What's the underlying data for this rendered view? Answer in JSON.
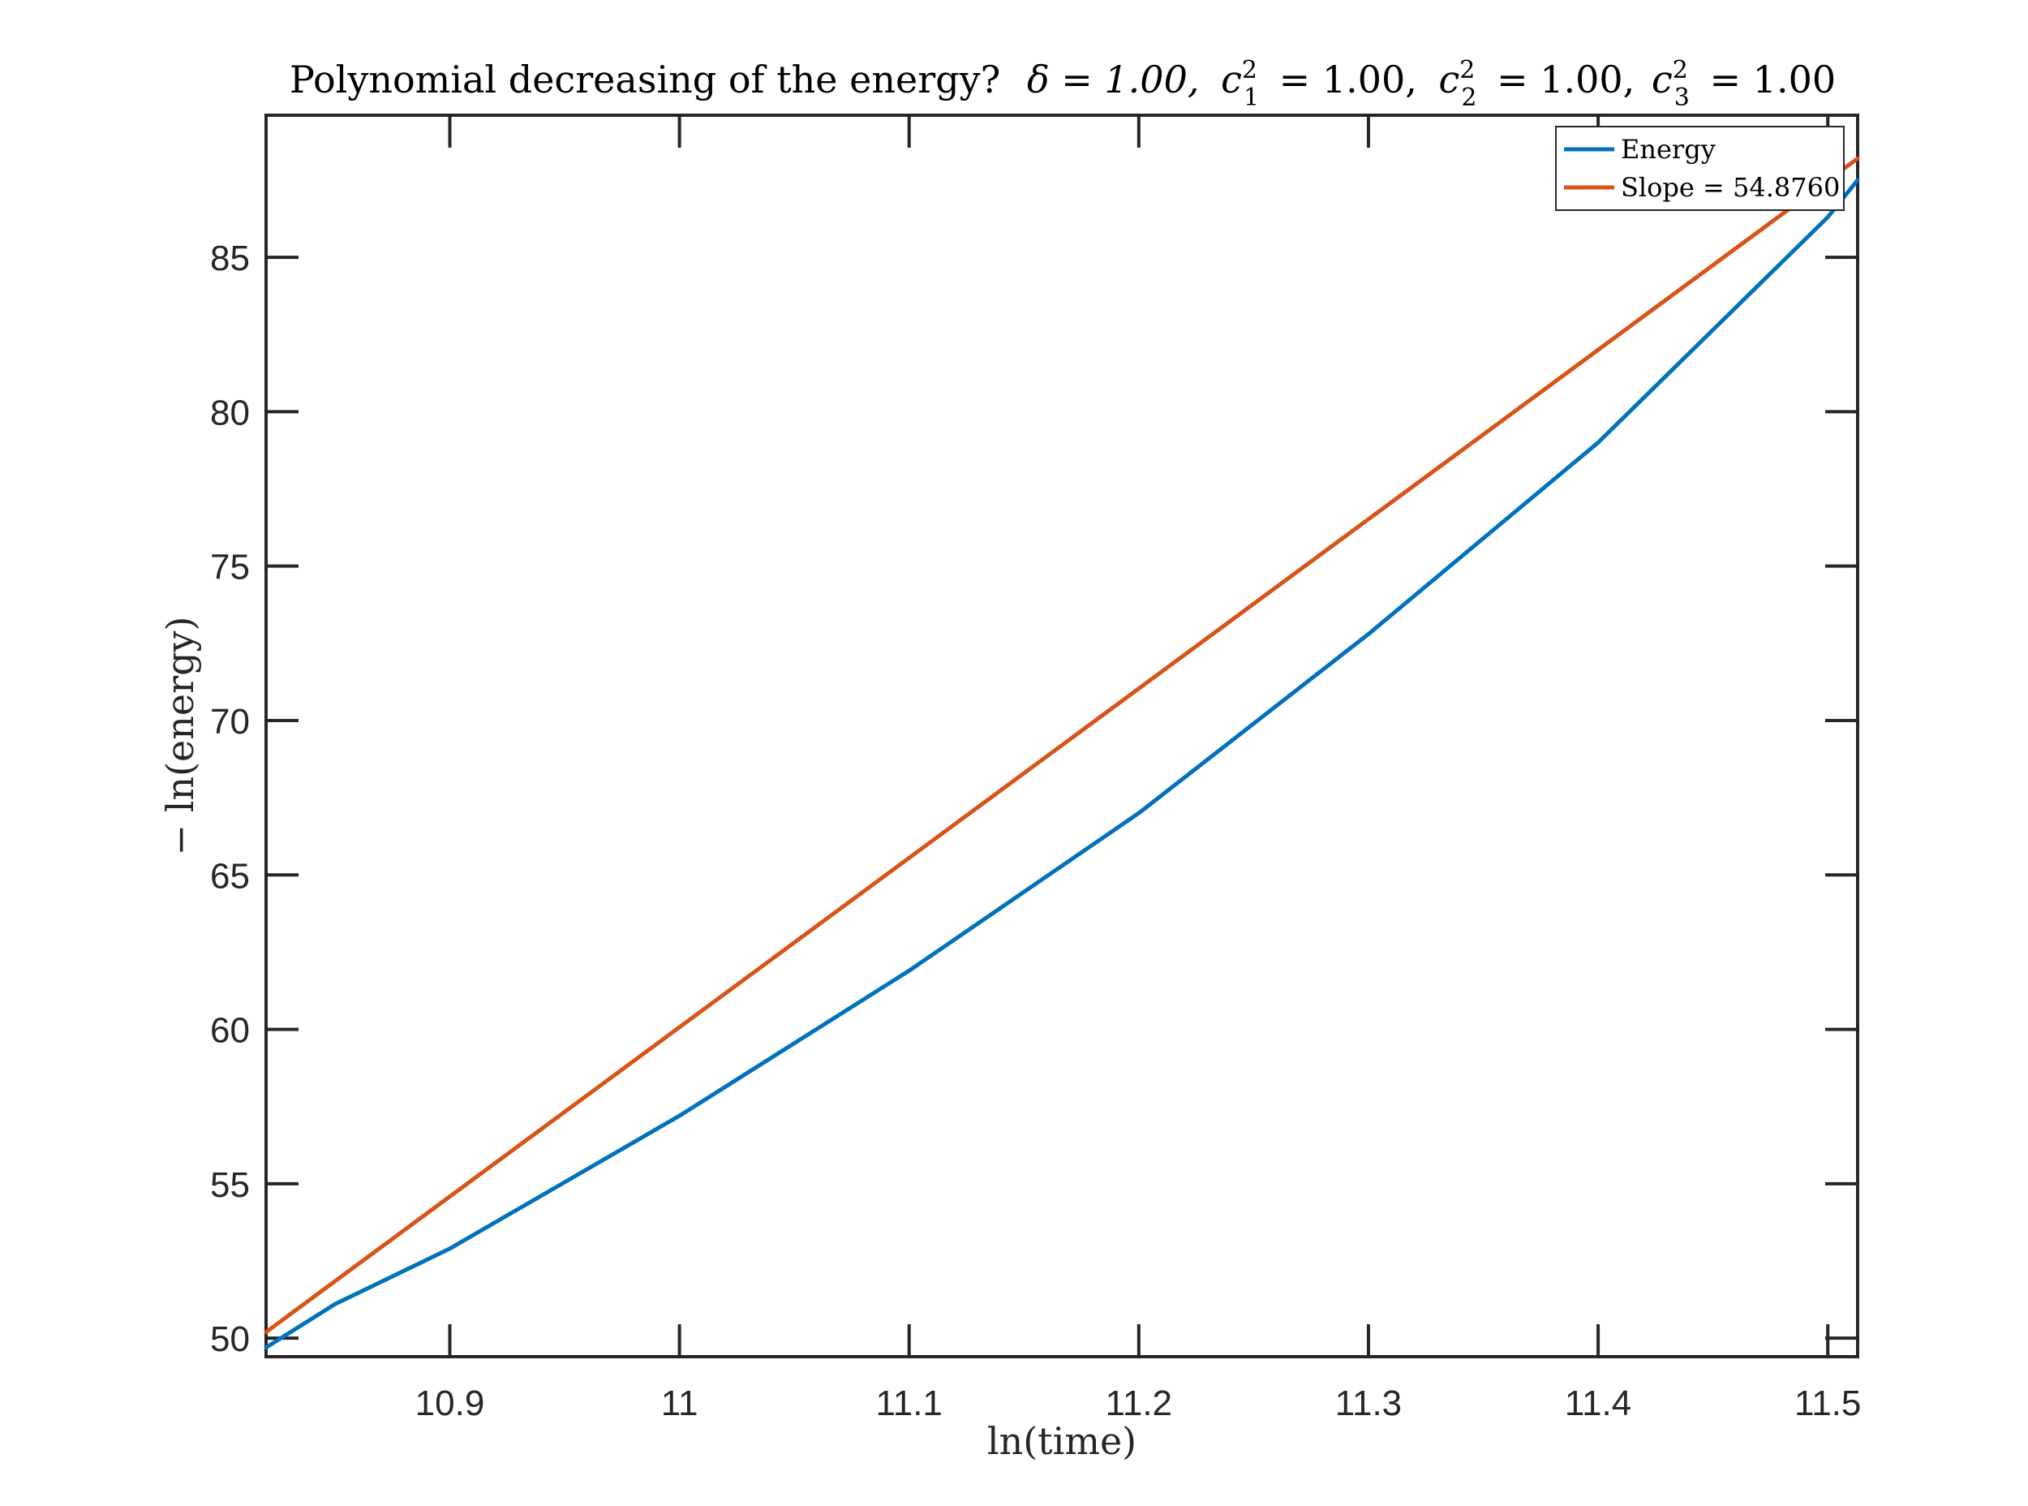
{
  "chart_data": {
    "type": "line",
    "title": "Polynomial decreasing of the energy? δ = 1.00, c₁² = 1.00, c₂² = 1.00, c₃² = 1.00",
    "title_parts": {
      "prefix": "Polynomial decreasing of the energy?",
      "delta": "δ = 1.00,",
      "c1": "= 1.00,",
      "c2": "= 1.00,",
      "c3": "= 1.00",
      "c_letter": "c",
      "sup": "2",
      "sub1": "1",
      "sub2": "2",
      "sub3": "3"
    },
    "xlabel": "ln(time)",
    "ylabel": "− ln(energy)",
    "xlim": [
      10.82,
      11.513
    ],
    "ylim": [
      49.4,
      89.6
    ],
    "xticks": [
      10.9,
      11,
      11.1,
      11.2,
      11.3,
      11.4,
      11.5
    ],
    "xtick_labels": [
      "10.9",
      "11",
      "11.1",
      "11.2",
      "11.3",
      "11.4",
      "11.5"
    ],
    "yticks": [
      50,
      55,
      60,
      65,
      70,
      75,
      80,
      85
    ],
    "ytick_labels": [
      "50",
      "55",
      "60",
      "65",
      "70",
      "75",
      "80",
      "85"
    ],
    "grid": false,
    "legend": "top-right",
    "series": [
      {
        "name": "Energy",
        "color": "#0072BD",
        "x": [
          10.82,
          10.85,
          10.9,
          11.0,
          11.1,
          11.2,
          11.3,
          11.4,
          11.5,
          11.513
        ],
        "y": [
          49.7,
          51.1,
          52.9,
          57.2,
          61.9,
          67.0,
          72.8,
          79.0,
          86.3,
          87.5
        ]
      },
      {
        "name": "Slope = 54.8760",
        "color": "#D95319",
        "x": [
          10.82,
          11.513
        ],
        "y": [
          50.2,
          88.2
        ]
      }
    ]
  }
}
